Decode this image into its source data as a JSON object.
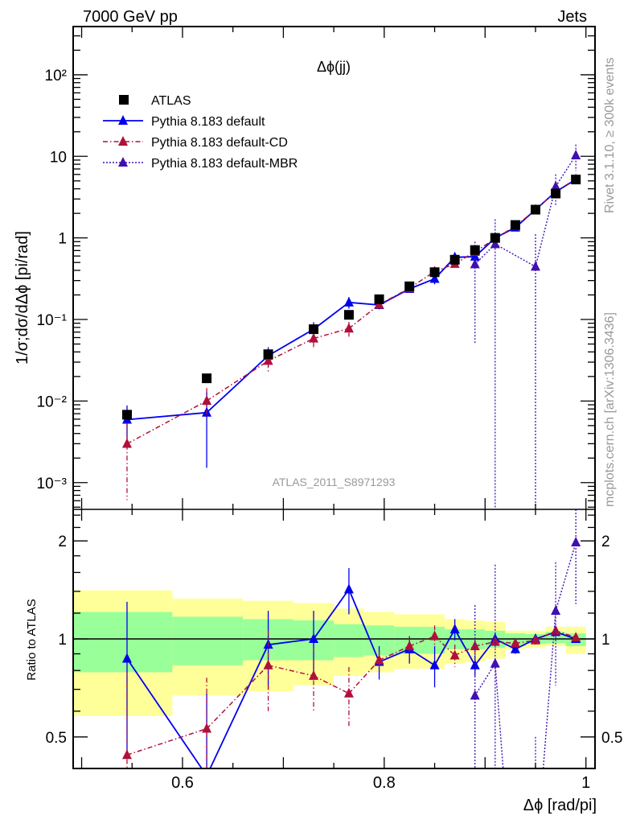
{
  "header": {
    "left": "7000 GeV pp",
    "right": "Jets"
  },
  "side_text": {
    "rivet": "Rivet 3.1.10, ≥ 300k events",
    "mcplots": "mcplots.cern.ch [arXiv:1306.3436]"
  },
  "analysis_id": "ATLAS_2011_S8971293",
  "colors": {
    "atlas": "#000000",
    "default": "#0000ee",
    "cd": "#b0103a",
    "mbr": "#4010b0",
    "band_yellow": "#ffff99",
    "band_green": "#99ff99"
  },
  "chart_data": [
    {
      "type": "scatter",
      "title": "Δϕ(jj)",
      "xlabel": "Δϕ [rad/pi]",
      "ylabel": "1/σ;dσ/dΔϕ [pi/rad]",
      "yscale": "log",
      "xlim": [
        0.4916,
        1.009
      ],
      "ylim": [
        0.00047,
        390
      ],
      "ytick_labels": [
        "10⁻³",
        "10⁻²",
        "10⁻¹",
        "1",
        "10",
        "10²"
      ],
      "yticks": [
        0.001,
        0.01,
        0.1,
        1,
        10,
        100
      ],
      "legend": [
        "ATLAS",
        "Pythia 8.183 default",
        "Pythia 8.183 default-CD",
        "Pythia 8.183 default-MBR"
      ],
      "legend_position": "top-left",
      "x": [
        0.545,
        0.624,
        0.685,
        0.73,
        0.765,
        0.795,
        0.825,
        0.85,
        0.87,
        0.89,
        0.91,
        0.93,
        0.95,
        0.97,
        0.99
      ],
      "atlas": [
        0.0068,
        0.019,
        0.0375,
        0.076,
        0.114,
        0.177,
        0.255,
        0.38,
        0.54,
        0.71,
        1.0,
        1.44,
        2.22,
        3.5,
        5.2
      ]
    },
    {
      "type": "line",
      "ylabel": "Ratio to ATLAS",
      "yscale": "log",
      "ylim": [
        0.4,
        2.5
      ],
      "yticks": [
        0.5,
        1,
        2
      ],
      "ytick_labels": [
        "0.5",
        "1",
        "2"
      ],
      "xticks": [
        0.6,
        0.8,
        1.0
      ],
      "xtick_labels": [
        "0.6",
        "0.8",
        "1"
      ],
      "bin_edges": [
        0.4916,
        0.59,
        0.66,
        0.71,
        0.75,
        0.78,
        0.81,
        0.84,
        0.86,
        0.88,
        0.9,
        0.92,
        0.94,
        0.96,
        0.98,
        1.0
      ],
      "band_yellow": [
        [
          0.58,
          1.41
        ],
        [
          0.67,
          1.33
        ],
        [
          0.69,
          1.31
        ],
        [
          0.72,
          1.29
        ],
        [
          0.77,
          1.24
        ],
        [
          0.79,
          1.21
        ],
        [
          0.81,
          1.19
        ],
        [
          0.81,
          1.19
        ],
        [
          0.84,
          1.15
        ],
        [
          0.85,
          1.14
        ],
        [
          0.87,
          1.13
        ],
        [
          0.93,
          1.06
        ],
        [
          0.94,
          1.06
        ],
        [
          0.95,
          1.09
        ],
        [
          0.9,
          1.09
        ]
      ],
      "band_green": [
        [
          0.79,
          1.21
        ],
        [
          0.83,
          1.17
        ],
        [
          0.86,
          1.15
        ],
        [
          0.86,
          1.14
        ],
        [
          0.88,
          1.11
        ],
        [
          0.89,
          1.1
        ],
        [
          0.9,
          1.09
        ],
        [
          0.9,
          1.09
        ],
        [
          0.93,
          1.07
        ],
        [
          0.93,
          1.07
        ],
        [
          0.94,
          1.06
        ],
        [
          0.95,
          1.04
        ],
        [
          0.965,
          1.035
        ],
        [
          0.97,
          1.05
        ],
        [
          0.95,
          1.04
        ]
      ],
      "series": [
        {
          "name": "Pythia 8.183 default",
          "key": "default",
          "start": 0,
          "ratio": [
            0.87,
            0.38,
            0.96,
            1.0,
            1.42,
            0.85,
            0.93,
            0.83,
            1.07,
            0.83,
            1.0,
            0.93,
            1.0,
            1.05,
            1.0
          ],
          "err": [
            0.43,
            0.3,
            0.26,
            0.22,
            0.23,
            0.1,
            0.09,
            0.12,
            0.08,
            0.06,
            0.04,
            0.03,
            0.02,
            0.02,
            0.02
          ]
        },
        {
          "name": "Pythia 8.183 default-CD",
          "key": "cd",
          "start": 0,
          "ratio": [
            0.44,
            0.53,
            0.83,
            0.77,
            0.68,
            0.86,
            0.95,
            1.02,
            0.89,
            0.95,
            0.98,
            0.97,
            0.99,
            1.06,
            1.01
          ],
          "err": [
            0.35,
            0.23,
            0.23,
            0.17,
            0.14,
            0.06,
            0.07,
            0.08,
            0.07,
            0.05,
            0.04,
            0.03,
            0.03,
            0.03,
            0.02
          ]
        },
        {
          "name": "Pythia 8.183 default-MBR",
          "key": "mbr",
          "start": 9,
          "ratio": [
            0.67,
            0.84,
            0,
            0.2,
            1.22,
            1.98
          ],
          "err": [
            0.6,
            0.85,
            0,
            0.3,
            0.5,
            0.7
          ]
        }
      ]
    }
  ]
}
